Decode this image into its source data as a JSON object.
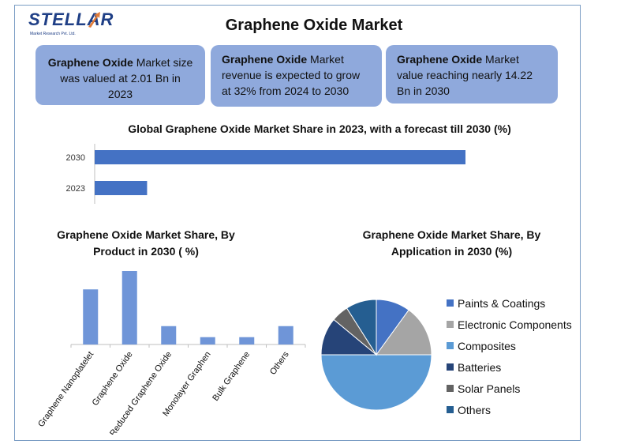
{
  "logo": {
    "word": "STELLAR",
    "sub": "Market Research Pvt. Ltd."
  },
  "title": "Graphene Oxide Market",
  "cards": [
    {
      "bold": "Graphene Oxide",
      "text": " Market size was valued at 2.01 Bn in 2023"
    },
    {
      "bold": "Graphene Oxide",
      "text": " Market revenue is expected to grow at 32% from 2024 to 2030"
    },
    {
      "bold": "Graphene Oxide",
      "text": " Market value reaching nearly 14.22 Bn in 2030"
    }
  ],
  "colors": {
    "bar": "#4472c4",
    "bar_light": "#6f95d8",
    "card": "#8fa9dc"
  },
  "chart_data": [
    {
      "type": "bar",
      "orientation": "horizontal",
      "title": "Global Graphene Oxide Market Share in 2023, with a forecast till 2030 (%)",
      "categories": [
        "2030",
        "2023"
      ],
      "values": [
        14.22,
        2.01
      ],
      "xlim": [
        0,
        14.22
      ]
    },
    {
      "type": "bar",
      "title": "Graphene Oxide Market Share, By Product in 2030 ( %)",
      "categories": [
        "Graphene Nanoplatelet",
        "Graphene Oxide",
        "Reduced Graphene Oxide",
        "Monolayer Graphen",
        "Bulk Graphene",
        "Others"
      ],
      "values": [
        30,
        40,
        10,
        4,
        4,
        10
      ],
      "ylim": [
        0,
        40
      ]
    },
    {
      "type": "pie",
      "title": "Graphene Oxide Market Share, By Application in 2030 (%)",
      "categories": [
        "Paints & Coatings",
        "Electronic Components",
        "Composites",
        "Batteries",
        "Solar Panels",
        "Others"
      ],
      "values": [
        10,
        15,
        50,
        11,
        5,
        9
      ],
      "colors": [
        "#4472c4",
        "#a5a5a5",
        "#5b9bd5",
        "#264478",
        "#636363",
        "#255e91"
      ],
      "legend_position": "right"
    }
  ]
}
